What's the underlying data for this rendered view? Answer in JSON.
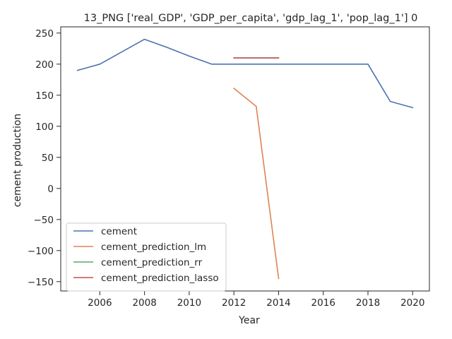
{
  "chart_data": {
    "type": "line",
    "title": "13_PNG ['real_GDP', 'GDP_per_capita', 'gdp_lag_1', 'pop_lag_1'] 0",
    "xlabel": "Year",
    "ylabel": "cement production",
    "xlim": [
      2004.25,
      2020.75
    ],
    "ylim": [
      -165,
      260
    ],
    "xticks": [
      2006,
      2008,
      2010,
      2012,
      2014,
      2016,
      2018,
      2020
    ],
    "yticks": [
      -150,
      -100,
      -50,
      0,
      50,
      100,
      150,
      200,
      250
    ],
    "grid": false,
    "legend_position": "lower-left",
    "series": [
      {
        "name": "cement",
        "color": "#4c72b0",
        "x": [
          2005,
          2006,
          2008,
          2009,
          2010,
          2011,
          2012,
          2013,
          2014,
          2015,
          2016,
          2017,
          2018,
          2019,
          2020
        ],
        "y": [
          190,
          200,
          240,
          227,
          213,
          200,
          200,
          200,
          200,
          200,
          200,
          200,
          200,
          140,
          130
        ]
      },
      {
        "name": "cement_prediction_lm",
        "color": "#dd8452",
        "x": [
          2012,
          2013,
          2014
        ],
        "y": [
          161,
          132,
          -145
        ]
      },
      {
        "name": "cement_prediction_rr",
        "color": "#55a868",
        "x": [
          2012,
          2013,
          2014
        ],
        "y": [
          210,
          210,
          210
        ]
      },
      {
        "name": "cement_prediction_lasso",
        "color": "#c44e52",
        "x": [
          2012,
          2013,
          2014
        ],
        "y": [
          210,
          210,
          210
        ]
      }
    ]
  }
}
